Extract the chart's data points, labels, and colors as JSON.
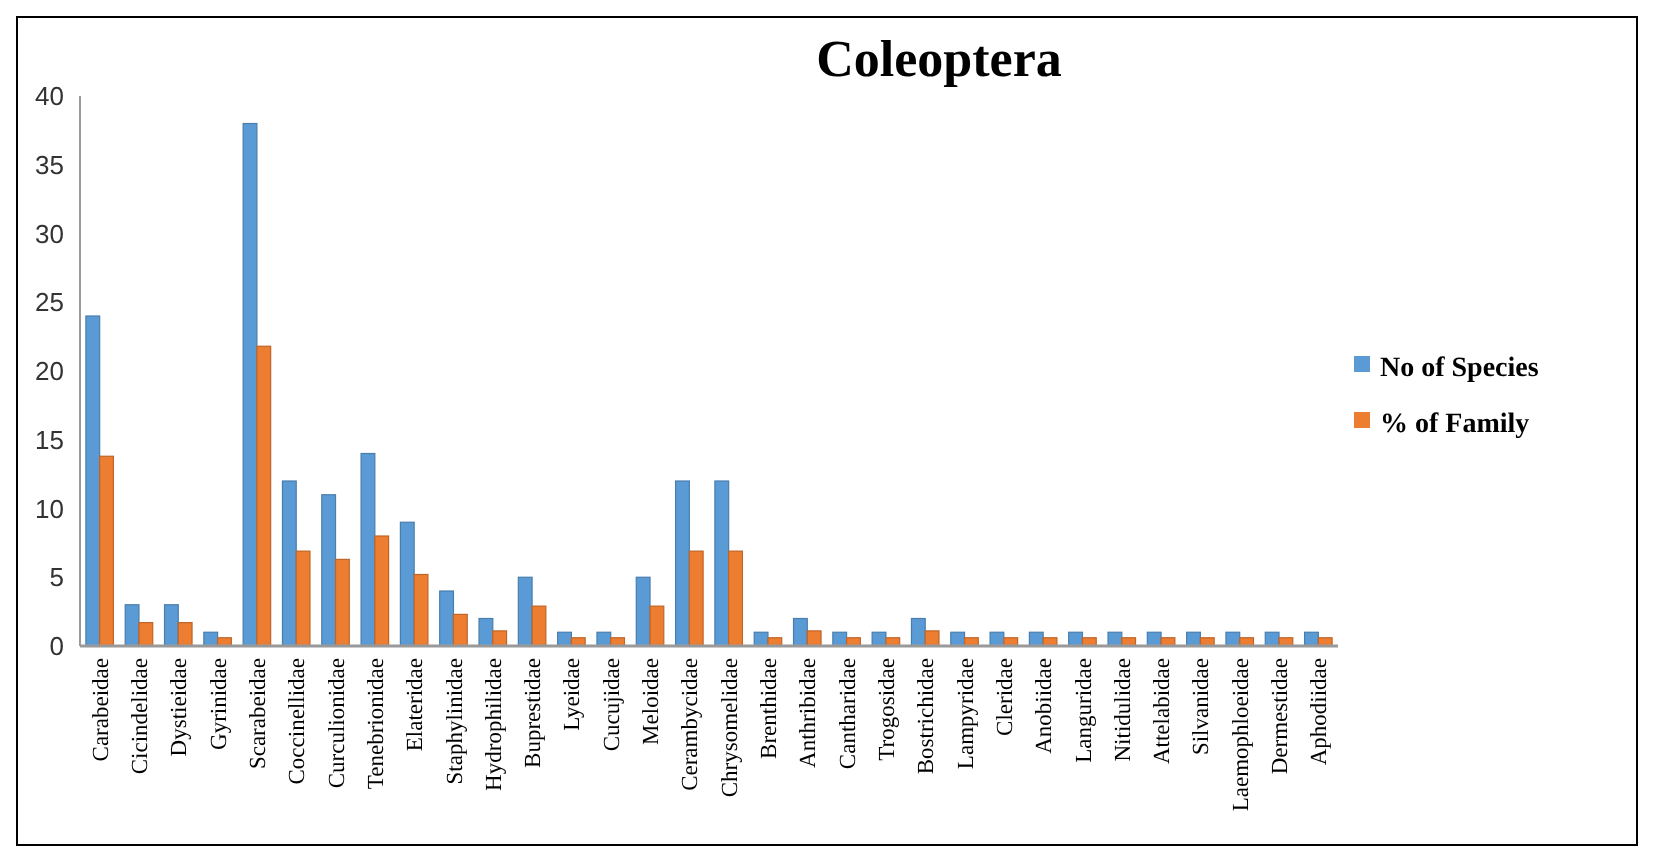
{
  "chart_data": {
    "type": "bar",
    "title": "Coleoptera",
    "categories": [
      "Carabeidae",
      "Cicindelidae",
      "Dystieidae",
      "Gyrinidae",
      "Scarabeidae",
      "Coccinellidae",
      "Curculionidae",
      "Tenebrionidae",
      "Elateridae",
      "Staphylinidae",
      "Hydrophilidae",
      "Buprestidae",
      "Lyeidae",
      "Cucujidae",
      "Meloidae",
      "Cerambycidae",
      "Chrysomelidae",
      "Brenthidae",
      "Anthribidae",
      "Cantharidae",
      "Trogosidae",
      "Bostrichidae",
      "Lampyridae",
      "Cleridae",
      "Anobiidae",
      "Languridae",
      "Nitidulidae",
      "Attelabidae",
      "Silvanidae",
      "Laemophloeidae",
      "Dermestidae",
      "Aphodiidae"
    ],
    "series": [
      {
        "name": "No of Species",
        "color": "#5b9bd5",
        "values": [
          24,
          3,
          3,
          1,
          38,
          12,
          11,
          14,
          9,
          4,
          2,
          5,
          1,
          1,
          5,
          12,
          12,
          1,
          2,
          1,
          1,
          2,
          1,
          1,
          1,
          1,
          1,
          1,
          1,
          1,
          1,
          1
        ]
      },
      {
        "name": "% of Family",
        "color": "#ed7d31",
        "values": [
          13.8,
          1.7,
          1.7,
          0.6,
          21.8,
          6.9,
          6.3,
          8.0,
          5.2,
          2.3,
          1.1,
          2.9,
          0.6,
          0.6,
          2.9,
          6.9,
          6.9,
          0.6,
          1.1,
          0.6,
          0.6,
          1.1,
          0.6,
          0.6,
          0.6,
          0.6,
          0.6,
          0.6,
          0.6,
          0.6,
          0.6,
          0.6
        ]
      }
    ],
    "ylim": [
      0,
      40
    ],
    "yticks": [
      0,
      5,
      10,
      15,
      20,
      25,
      30,
      35,
      40
    ],
    "grid": false,
    "legend": "right"
  }
}
